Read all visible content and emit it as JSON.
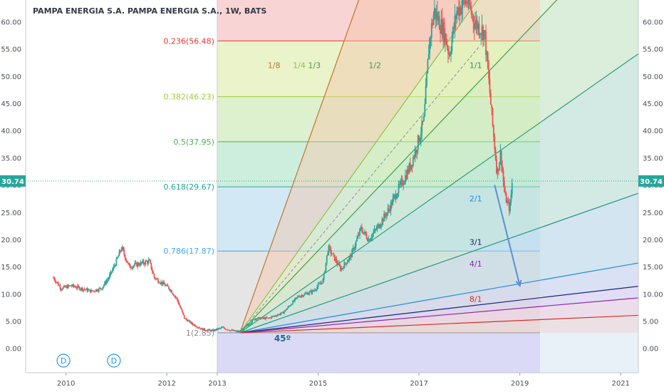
{
  "chart_data": {
    "type": "candlestick",
    "title": "PAMPA ENERGIA S.A. PAMPA ENERGIA S.A., 1W, BATS",
    "y_ticks": [
      "0.00",
      "5.00",
      "10.00",
      "15.00",
      "20.00",
      "25.00",
      "30.00",
      "35.00",
      "40.00",
      "45.00",
      "50.00",
      "55.00",
      "60.00"
    ],
    "y_range": [
      -4.5,
      64
    ],
    "x_ticks": [
      {
        "year": 2010,
        "label": "2010"
      },
      {
        "year": 2012,
        "label": "2012"
      },
      {
        "year": 2013,
        "label": "2013"
      },
      {
        "year": 2015,
        "label": "2015"
      },
      {
        "year": 2017,
        "label": "2017"
      },
      {
        "year": 2019,
        "label": "2019"
      },
      {
        "year": 2021,
        "label": "2021"
      }
    ],
    "x_range": [
      2009.2,
      2021.35
    ],
    "last_price": "30.74",
    "last_value": 30.74,
    "fib_start": 2013.0,
    "fib_end": 2019.4,
    "fib_levels": [
      {
        "label": "0.236(56.48)",
        "value": 56.48,
        "color": "#e53935"
      },
      {
        "label": "0.382(46.23)",
        "value": 46.23,
        "color": "#9ccc3c"
      },
      {
        "label": "0.5(37.95)",
        "value": 37.95,
        "color": "#4caf50"
      },
      {
        "label": "0.618(29.67)",
        "value": 29.67,
        "color": "#26a69a"
      },
      {
        "label": "0.786(17.87)",
        "value": 17.87,
        "color": "#42a5f5"
      },
      {
        "label": "1(2.85)",
        "value": 2.85,
        "color": "#888888"
      }
    ],
    "fib_top": 64,
    "fib_bottom": -4.5,
    "gann_origin": {
      "year": 2013.45,
      "price": 2.85
    },
    "gann_angle_label": "45º",
    "gann_fans": [
      {
        "label": "1/8",
        "ratio": 8,
        "color": "#c0762e",
        "label_year": 2014.0,
        "label_price": 51.5
      },
      {
        "label": "1/4",
        "ratio": 4,
        "color": "#8bc34a",
        "label_year": 2014.5,
        "label_price": 51.5
      },
      {
        "label": "1/3",
        "ratio": 3,
        "color": "#43a047",
        "label_year": 2014.8,
        "label_price": 51.5
      },
      {
        "label": "1/2",
        "ratio": 2,
        "color": "#2e9e76",
        "label_year": 2016.0,
        "label_price": 51.5
      },
      {
        "label": "1/1",
        "ratio": 1,
        "color": "#26947e",
        "label_year": 2018.0,
        "label_price": 51.5
      },
      {
        "label": "2/1",
        "ratio": 0.5,
        "color": "#1e88e5",
        "label_year": 2018.0,
        "label_price": 27.0
      },
      {
        "label": "3/1",
        "ratio": 0.3333,
        "color": "#1a237e",
        "label_year": 2018.0,
        "label_price": 19.0
      },
      {
        "label": "4/1",
        "ratio": 0.25,
        "color": "#8e24aa",
        "label_year": 2018.0,
        "label_price": 15.0
      },
      {
        "label": "8/1",
        "ratio": 0.125,
        "color": "#d32f2f",
        "label_year": 2018.0,
        "label_price": 8.5
      }
    ],
    "projection_arrow": {
      "from": [
        2018.5,
        30.0
      ],
      "to": [
        2019.0,
        11.5
      ],
      "color": "#5b8fd0"
    },
    "event_markers": [
      {
        "label": "D",
        "year": 2009.95
      },
      {
        "label": "D",
        "year": 2010.95
      }
    ],
    "price_path": [
      [
        2009.75,
        13.0
      ],
      [
        2009.9,
        11.0
      ],
      [
        2010.1,
        11.5
      ],
      [
        2010.3,
        11.0
      ],
      [
        2010.5,
        10.5
      ],
      [
        2010.7,
        11.0
      ],
      [
        2010.85,
        13.0
      ],
      [
        2011.0,
        16.0
      ],
      [
        2011.1,
        18.5
      ],
      [
        2011.25,
        15.0
      ],
      [
        2011.45,
        15.5
      ],
      [
        2011.65,
        16.0
      ],
      [
        2011.75,
        13.0
      ],
      [
        2011.9,
        12.0
      ],
      [
        2012.05,
        11.0
      ],
      [
        2012.2,
        9.0
      ],
      [
        2012.35,
        5.5
      ],
      [
        2012.5,
        4.5
      ],
      [
        2012.7,
        3.5
      ],
      [
        2012.9,
        3.2
      ],
      [
        2013.1,
        3.8
      ],
      [
        2013.3,
        3.2
      ],
      [
        2013.45,
        3.0
      ],
      [
        2013.75,
        5.5
      ],
      [
        2014.0,
        5.5
      ],
      [
        2014.3,
        6.5
      ],
      [
        2014.6,
        9.5
      ],
      [
        2014.9,
        10.5
      ],
      [
        2015.1,
        12.5
      ],
      [
        2015.2,
        18.5
      ],
      [
        2015.45,
        14.5
      ],
      [
        2015.65,
        17.0
      ],
      [
        2015.85,
        22.0
      ],
      [
        2016.0,
        20.0
      ],
      [
        2016.2,
        22.5
      ],
      [
        2016.4,
        25.5
      ],
      [
        2016.55,
        28.5
      ],
      [
        2016.7,
        31.0
      ],
      [
        2016.85,
        34.0
      ],
      [
        2016.95,
        37.0
      ],
      [
        2017.1,
        42.0
      ],
      [
        2017.2,
        56.0
      ],
      [
        2017.3,
        62.0
      ],
      [
        2017.5,
        58.0
      ],
      [
        2017.6,
        54.0
      ],
      [
        2017.75,
        62.0
      ],
      [
        2017.95,
        64.0
      ],
      [
        2018.1,
        60.0
      ],
      [
        2018.3,
        58.0
      ],
      [
        2018.45,
        42.0
      ],
      [
        2018.55,
        32.0
      ],
      [
        2018.62,
        36.0
      ],
      [
        2018.7,
        28.0
      ],
      [
        2018.8,
        25.5
      ],
      [
        2018.85,
        30.74
      ]
    ]
  }
}
